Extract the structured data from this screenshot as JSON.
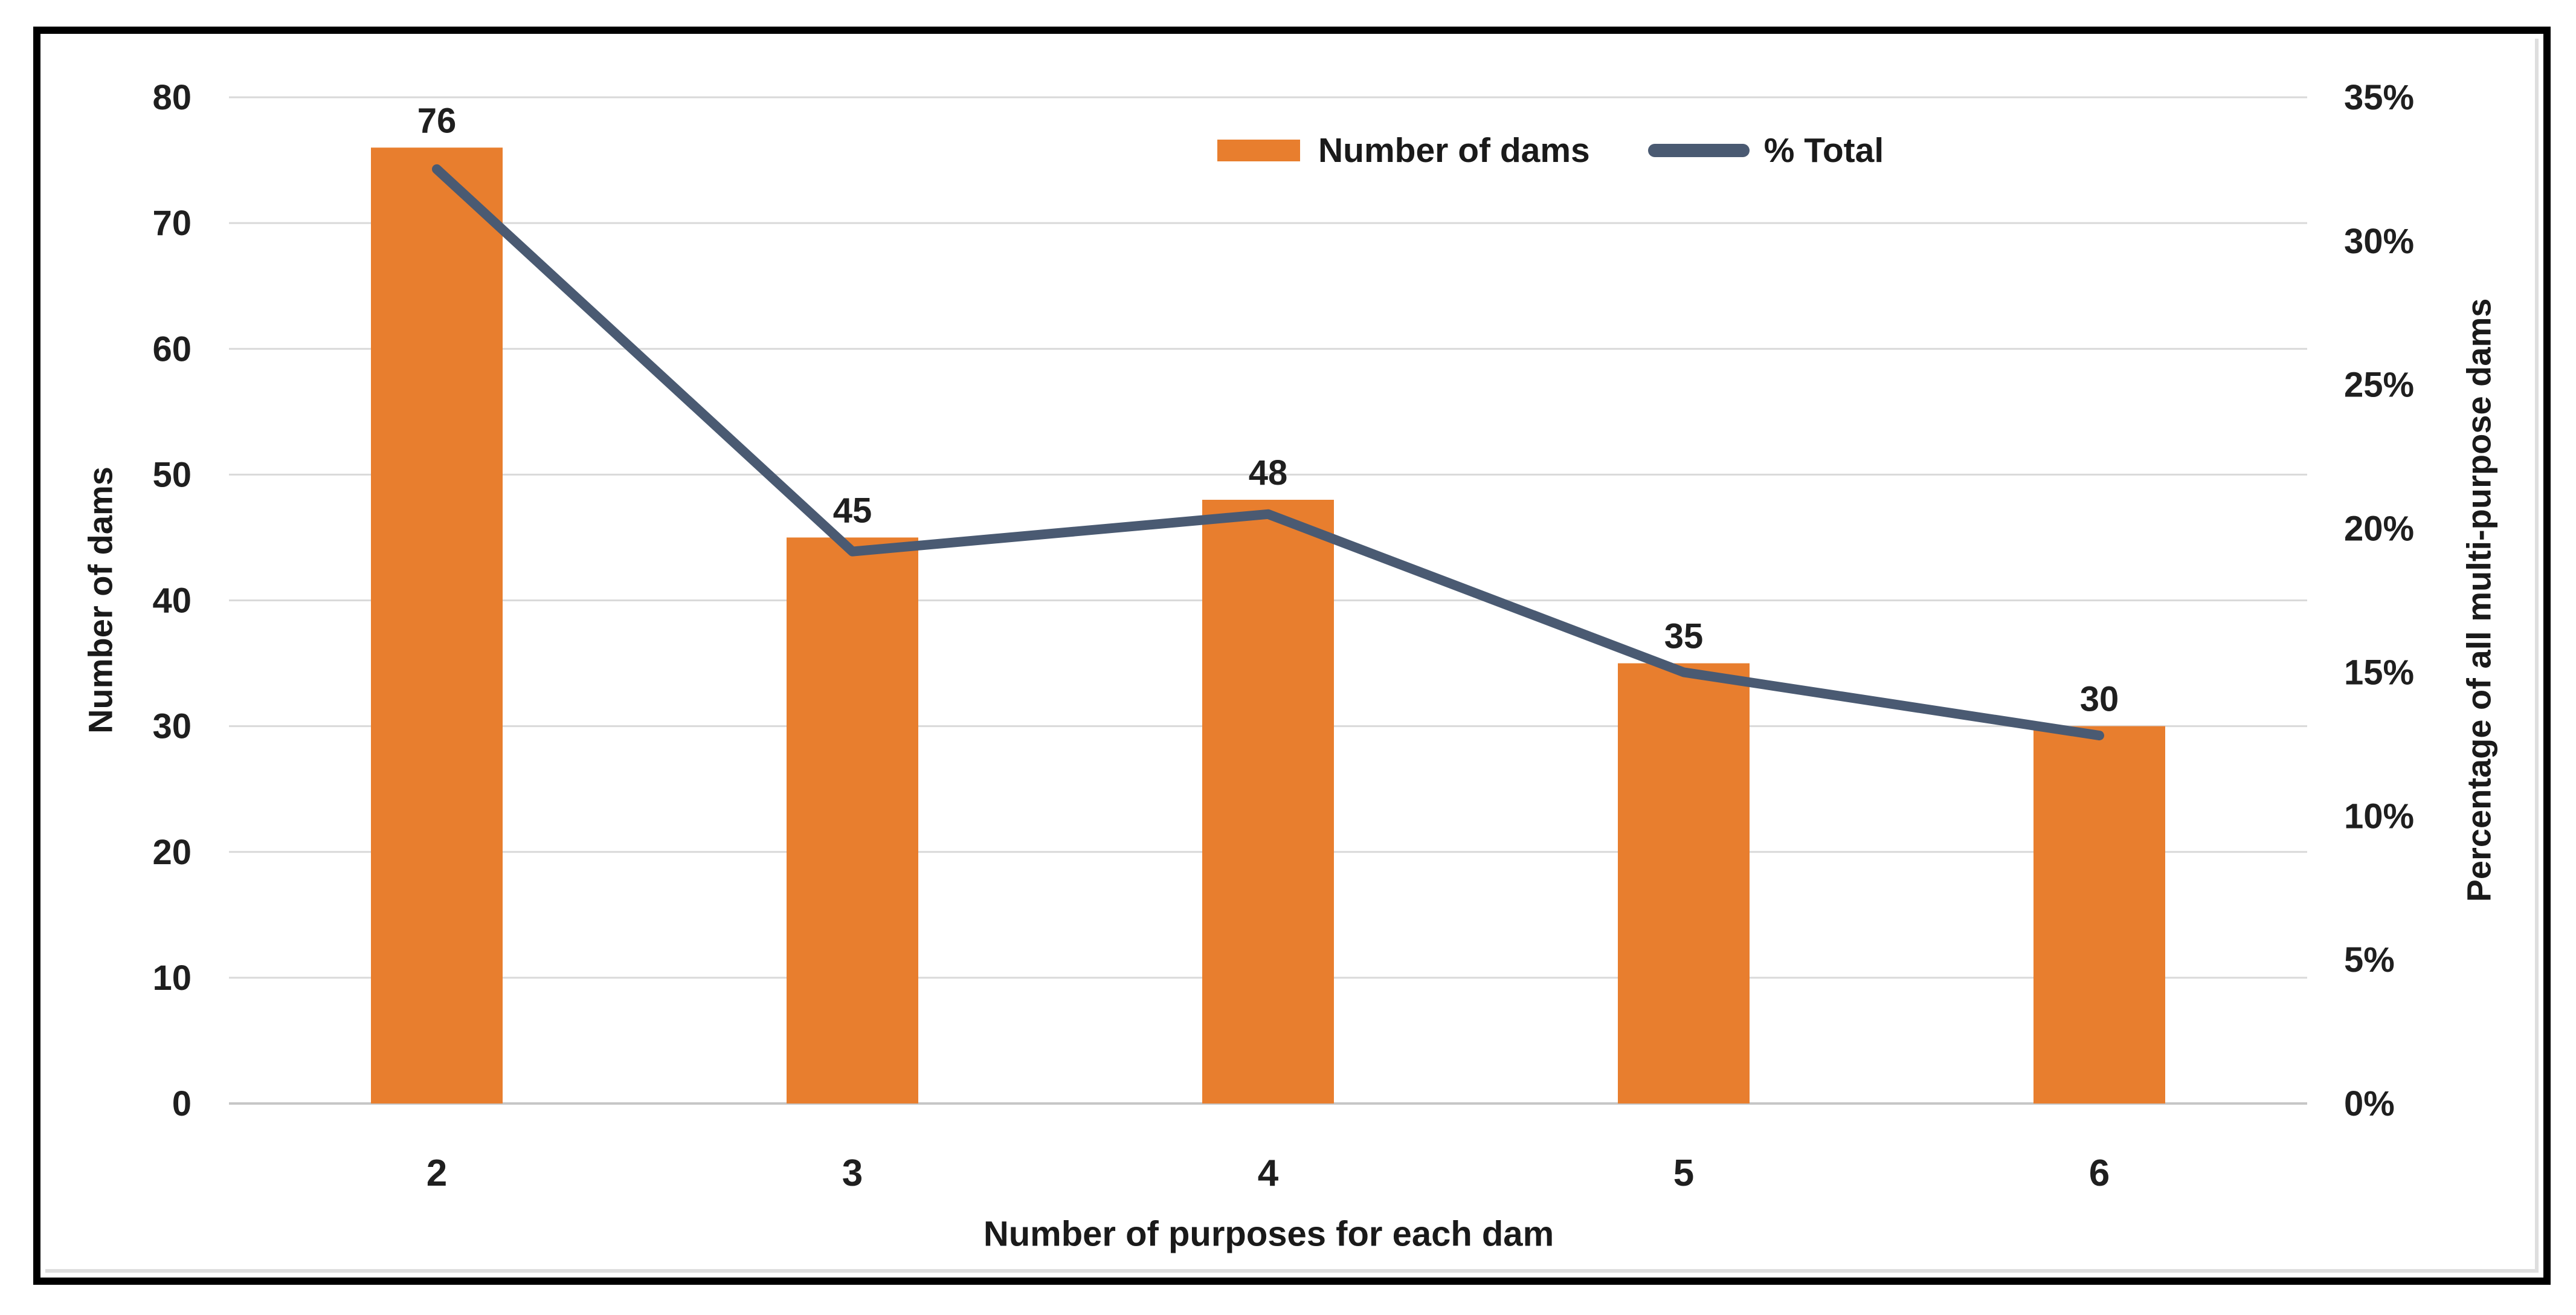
{
  "chart_data": {
    "type": "bar",
    "subtype": "combo-bar-line-dual-axis",
    "categories": [
      "2",
      "3",
      "4",
      "5",
      "6"
    ],
    "series": [
      {
        "name": "Number of dams",
        "type": "bar",
        "axis": "left",
        "values": [
          76,
          45,
          48,
          35,
          30
        ],
        "color": "#E87E2E"
      },
      {
        "name": "% Total",
        "type": "line",
        "axis": "right",
        "values_percent": [
          32.5,
          19.2,
          20.5,
          15.0,
          12.8
        ],
        "color": "#4A5A72"
      }
    ],
    "bar_data_labels": [
      "76",
      "45",
      "48",
      "35",
      "30"
    ],
    "title": "",
    "xlabel": "Number of purposes for each dam",
    "ylabel_left": "Number of dams",
    "ylabel_right": "Percentage of all multi-purpose dams",
    "left_axis": {
      "min": 0,
      "max": 80,
      "step": 10,
      "tick_labels": [
        "0",
        "10",
        "20",
        "30",
        "40",
        "50",
        "60",
        "70",
        "80"
      ]
    },
    "right_axis": {
      "min": 0,
      "max": 35,
      "step": 5,
      "tick_labels": [
        "0%",
        "5%",
        "10%",
        "15%",
        "20%",
        "25%",
        "30%",
        "35%"
      ]
    },
    "grid": true,
    "legend_position": "top"
  },
  "legend": {
    "items": [
      {
        "label": "Number of dams",
        "swatch": "bar"
      },
      {
        "label": "% Total",
        "swatch": "line"
      }
    ]
  },
  "axes": {
    "x_title": "Number of purposes for each dam",
    "y_left_title": "Number of dams",
    "y_right_title": "Percentage of all multi-purpose dams"
  },
  "colors": {
    "bar": "#E87E2E",
    "line": "#4A5A72",
    "gridline": "#D9D9D9",
    "axis_line": "#C6C6C6",
    "text": "#1F1F1F",
    "frame": "#000000",
    "background": "#FFFFFF"
  }
}
